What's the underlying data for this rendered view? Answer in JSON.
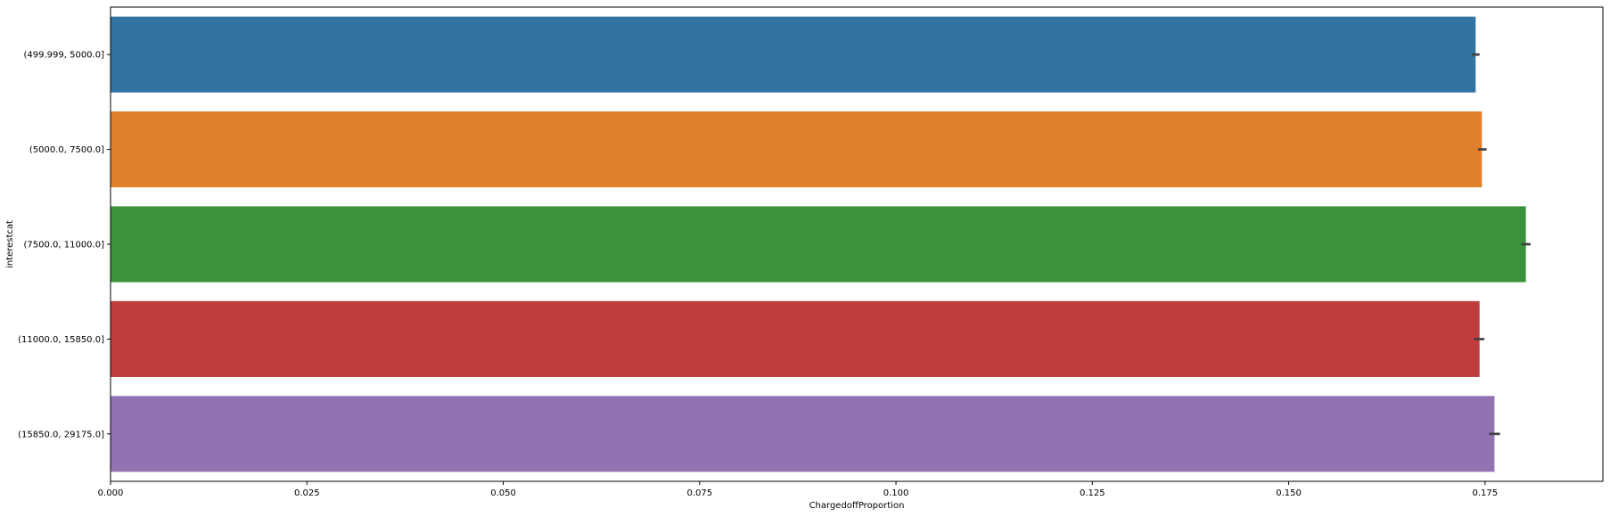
{
  "chart_data": {
    "type": "bar",
    "orientation": "horizontal",
    "title": "",
    "xlabel": "ChargedoffProportion",
    "ylabel": "interestcat",
    "xlim": [
      0,
      0.19
    ],
    "x_ticks": [
      {
        "value": 0.0,
        "label": "0.000"
      },
      {
        "value": 0.025,
        "label": "0.025"
      },
      {
        "value": 0.05,
        "label": "0.050"
      },
      {
        "value": 0.075,
        "label": "0.075"
      },
      {
        "value": 0.1,
        "label": "0.100"
      },
      {
        "value": 0.125,
        "label": "0.125"
      },
      {
        "value": 0.15,
        "label": "0.150"
      },
      {
        "value": 0.175,
        "label": "0.175"
      }
    ],
    "categories": [
      "(499.999, 5000.0]",
      "(5000.0, 7500.0]",
      "(7500.0, 11000.0]",
      "(11000.0, 15850.0]",
      "(15850.0, 29175.0]"
    ],
    "values": [
      0.1738,
      0.1746,
      0.1802,
      0.1743,
      0.1762
    ],
    "ci": [
      [
        0.1733,
        0.1743
      ],
      [
        0.1741,
        0.1752
      ],
      [
        0.1796,
        0.1808
      ],
      [
        0.1736,
        0.1749
      ],
      [
        0.1755,
        0.1769
      ]
    ],
    "colors": [
      "#3274a1",
      "#e1812c",
      "#3a923a",
      "#c03d3e",
      "#9372b2"
    ],
    "errorbar_color": "#424242",
    "grid": false,
    "legend": false
  }
}
